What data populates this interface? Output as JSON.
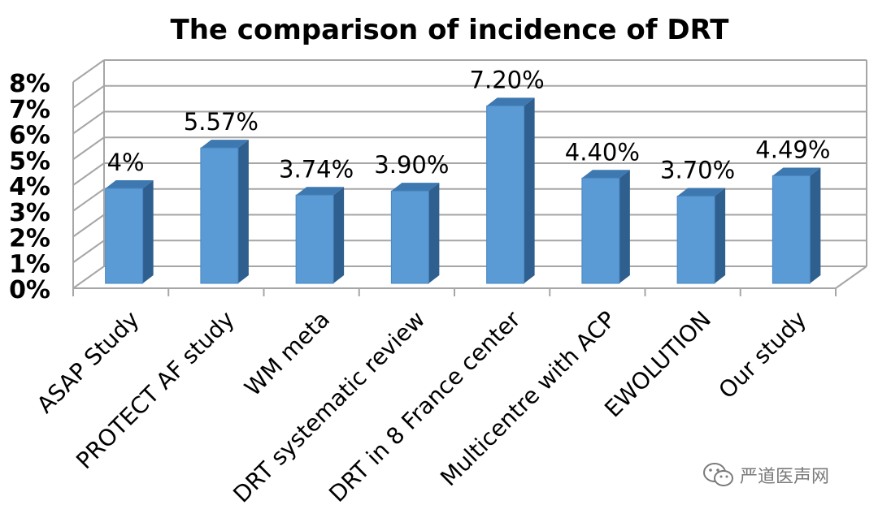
{
  "chart_data": {
    "type": "bar",
    "title": "The comparison of incidence of DRT",
    "categories": [
      "ASAP Study",
      "PROTECT AF study",
      "WM meta",
      "DRT systematic review",
      "DRT in 8 France center",
      "Multicentre with ACP",
      "EWOLUTION",
      "Our study"
    ],
    "values": [
      4.0,
      5.57,
      3.74,
      3.9,
      7.2,
      4.4,
      3.7,
      4.49
    ],
    "data_labels": [
      "4%",
      "5.57%",
      "3.74%",
      "3.90%",
      "7.20%",
      "4.40%",
      "3.70%",
      "4.49%"
    ],
    "ylim": [
      0,
      8
    ],
    "yticks": [
      "0%",
      "1%",
      "2%",
      "3%",
      "4%",
      "5%",
      "6%",
      "7%",
      "8%"
    ],
    "grid": true,
    "style": "3d-column",
    "colors": {
      "bar_front": "#5b9bd5",
      "bar_side": "#2f5f8f",
      "bar_top": "#3d78b0",
      "grid": "#a6a6a6"
    }
  },
  "watermark": {
    "text": "严道医声网",
    "icon": "wechat-icon"
  }
}
